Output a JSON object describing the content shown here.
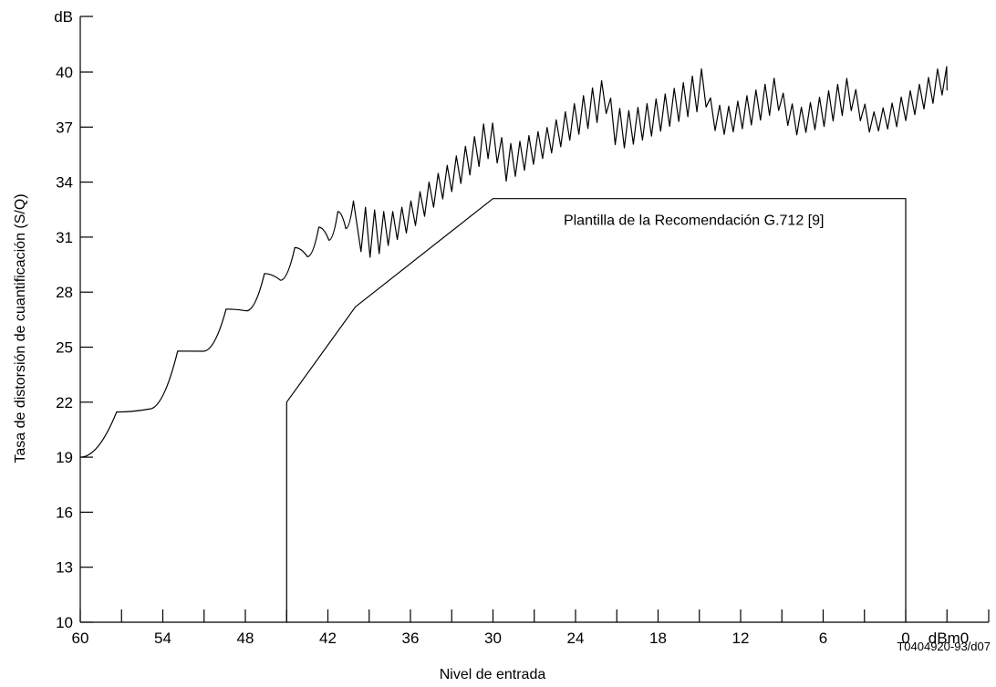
{
  "chart_data": {
    "type": "line",
    "title": "",
    "ylabel": "Tasa de distorsión de cuantificación (S/Q)",
    "xlabel": "Nivel de entrada",
    "y_unit": "dB",
    "x_unit": "dBm0",
    "figure_code": "T0404920-93/d07",
    "x_reversed": true,
    "xlim": [
      60,
      -5
    ],
    "ylim": [
      10,
      40
    ],
    "x_tick_labels": [
      "60",
      "54",
      "48",
      "42",
      "36",
      "30",
      "24",
      "18",
      "12",
      "6",
      "0"
    ],
    "x_ticks": [
      60,
      57,
      54,
      51,
      48,
      45,
      42,
      39,
      36,
      33,
      30,
      27,
      24,
      21,
      18,
      15,
      12,
      9,
      6,
      3,
      0,
      -3
    ],
    "y_tick_labels": [
      "10",
      "13",
      "16",
      "19",
      "22",
      "25",
      "28",
      "31",
      "34",
      "37",
      "40"
    ],
    "series": [
      {
        "name": "",
        "style": "solid",
        "envelope": {
          "peaks": [
            [
              58.8,
              20.3
            ],
            [
              56.2,
              22.4
            ],
            [
              53.8,
              24.2
            ],
            [
              51.7,
              25.6
            ],
            [
              49.8,
              26.8
            ],
            [
              48.2,
              27.9
            ],
            [
              46.8,
              28.9
            ],
            [
              45.5,
              29.7
            ],
            [
              44.3,
              30.5
            ],
            [
              43.2,
              31.2
            ],
            [
              42.1,
              31.9
            ],
            [
              41.1,
              32.5
            ],
            [
              40.1,
              33.0
            ],
            [
              39.2,
              32.6
            ],
            [
              38.2,
              32.4
            ],
            [
              37.2,
              32.4
            ],
            [
              36.2,
              32.8
            ],
            [
              35.4,
              33.4
            ],
            [
              34.4,
              34.2
            ],
            [
              33.2,
              35.0
            ],
            [
              32.2,
              35.8
            ],
            [
              31.2,
              36.6
            ],
            [
              30.3,
              37.6
            ],
            [
              29.5,
              36.5
            ],
            [
              28.5,
              36.0
            ],
            [
              27.5,
              36.5
            ],
            [
              26.0,
              37.0
            ],
            [
              24.5,
              38.0
            ],
            [
              23.0,
              39.0
            ],
            [
              22.0,
              39.6
            ],
            [
              21.4,
              38.5
            ],
            [
              20.5,
              37.8
            ],
            [
              19.0,
              38.2
            ],
            [
              17.5,
              38.8
            ],
            [
              16.0,
              39.5
            ],
            [
              14.8,
              40.2
            ],
            [
              14.2,
              38.6
            ],
            [
              13.2,
              38.0
            ],
            [
              12.0,
              38.5
            ],
            [
              10.5,
              39.2
            ],
            [
              9.3,
              39.8
            ],
            [
              8.8,
              38.6
            ],
            [
              7.8,
              38.0
            ],
            [
              6.5,
              38.5
            ],
            [
              5.2,
              39.2
            ],
            [
              4.0,
              39.8
            ],
            [
              3.4,
              38.6
            ],
            [
              2.4,
              37.8
            ],
            [
              1.2,
              38.2
            ],
            [
              0.0,
              38.8
            ],
            [
              -1.5,
              39.6
            ],
            [
              -2.5,
              40.3
            ]
          ],
          "valleys": [
            [
              59.8,
              19.0
            ],
            [
              58.0,
              18.9
            ],
            [
              55.5,
              21.2
            ],
            [
              53.4,
              23.0
            ],
            [
              51.3,
              24.6
            ],
            [
              49.5,
              25.9
            ],
            [
              47.9,
              27.0
            ],
            [
              46.5,
              28.0
            ],
            [
              45.2,
              28.8
            ],
            [
              44.0,
              29.6
            ],
            [
              42.9,
              30.3
            ],
            [
              41.8,
              30.9
            ],
            [
              40.8,
              31.6
            ],
            [
              39.8,
              30.3
            ],
            [
              38.7,
              29.8
            ],
            [
              37.7,
              30.5
            ],
            [
              36.7,
              31.0
            ],
            [
              35.8,
              31.5
            ],
            [
              34.9,
              32.2
            ],
            [
              33.8,
              33.0
            ],
            [
              32.8,
              33.6
            ],
            [
              31.8,
              34.3
            ],
            [
              30.8,
              35.0
            ],
            [
              30.0,
              35.5
            ],
            [
              29.0,
              34.0
            ],
            [
              28.0,
              34.5
            ],
            [
              27.0,
              35.0
            ],
            [
              25.5,
              35.7
            ],
            [
              24.0,
              36.5
            ],
            [
              22.5,
              37.2
            ],
            [
              21.7,
              37.8
            ],
            [
              21.0,
              35.7
            ],
            [
              20.0,
              36.0
            ],
            [
              18.5,
              36.5
            ],
            [
              17.0,
              37.1
            ],
            [
              15.5,
              37.7
            ],
            [
              14.5,
              38.1
            ],
            [
              13.7,
              36.5
            ],
            [
              12.7,
              36.7
            ],
            [
              11.5,
              37.0
            ],
            [
              10.0,
              37.6
            ],
            [
              9.0,
              38.0
            ],
            [
              8.3,
              36.5
            ],
            [
              7.3,
              36.7
            ],
            [
              6.0,
              37.0
            ],
            [
              4.7,
              37.6
            ],
            [
              3.7,
              38.0
            ],
            [
              2.9,
              36.7
            ],
            [
              1.9,
              36.8
            ],
            [
              0.7,
              37.0
            ],
            [
              -0.7,
              37.7
            ],
            [
              -2.0,
              38.3
            ],
            [
              -3.0,
              39.0
            ]
          ]
        }
      },
      {
        "name": "Plantilla de la Recomendación G.712 [9]",
        "style": "solid",
        "points": [
          [
            45,
            10
          ],
          [
            45,
            22
          ],
          [
            40,
            27.2
          ],
          [
            30,
            33.1
          ],
          [
            0,
            33.1
          ],
          [
            0,
            10
          ]
        ]
      }
    ],
    "annotations": [
      {
        "text": "Plantilla de la Recomendación G.712 [9]",
        "x": 15.4,
        "y": 33.1
      }
    ],
    "grid": false
  }
}
